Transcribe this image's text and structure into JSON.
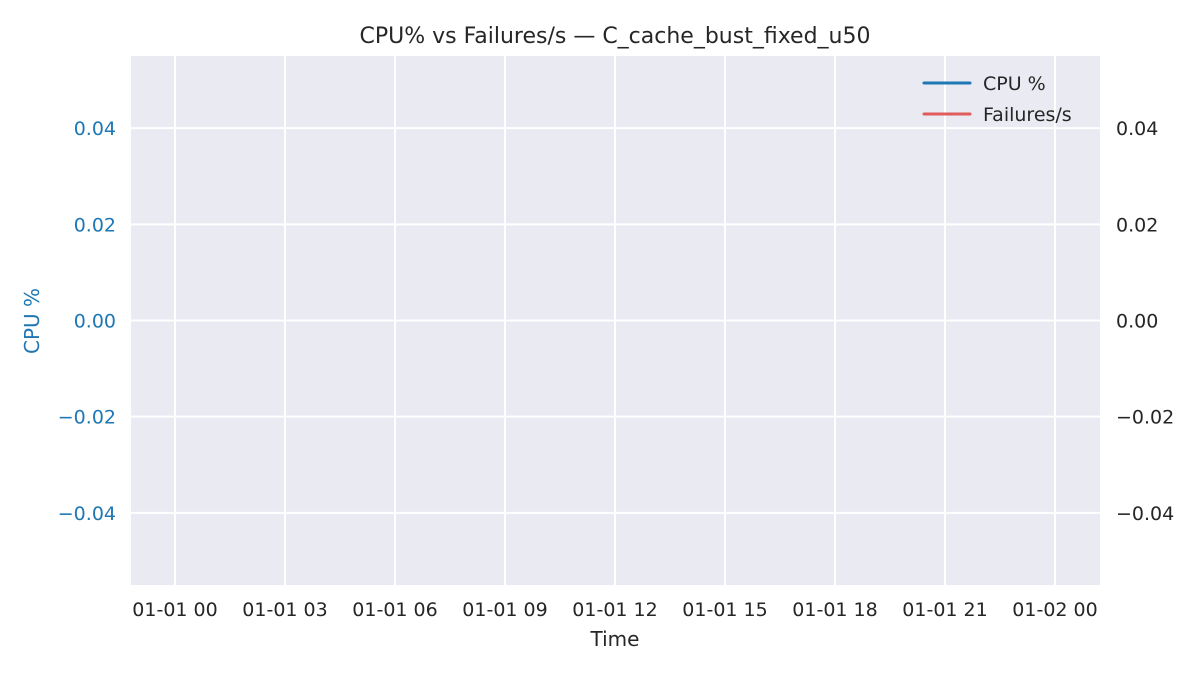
{
  "chart_data": {
    "type": "line",
    "title": "CPU% vs Failures/s — C_cache_bust_fixed_u50",
    "xlabel": "Time",
    "ylabel": "CPU %",
    "y2label": "",
    "x_ticks": [
      "01-01 00",
      "01-01 03",
      "01-01 06",
      "01-01 09",
      "01-01 12",
      "01-01 15",
      "01-01 18",
      "01-01 21",
      "01-02 00"
    ],
    "x_range": [
      "01-01 00",
      "01-02 00"
    ],
    "y_ticks": [
      "0.04",
      "0.02",
      "0.00",
      "−0.02",
      "−0.04"
    ],
    "y2_ticks": [
      "0.04",
      "0.02",
      "0.00",
      "−0.02",
      "−0.04"
    ],
    "ylim": [
      -0.055,
      0.055
    ],
    "y2lim": [
      -0.055,
      0.055
    ],
    "grid": true,
    "legend_position": "top-right",
    "series": [
      {
        "name": "CPU %",
        "axis": "left",
        "color": "#1f77b4",
        "x": [],
        "values": []
      },
      {
        "name": "Failures/s",
        "axis": "right",
        "color": "#e05c5c",
        "x": [],
        "values": []
      }
    ],
    "colors": {
      "background": "#eaeaf2",
      "left_axis": "#1f77b4",
      "text": "#262626"
    }
  }
}
